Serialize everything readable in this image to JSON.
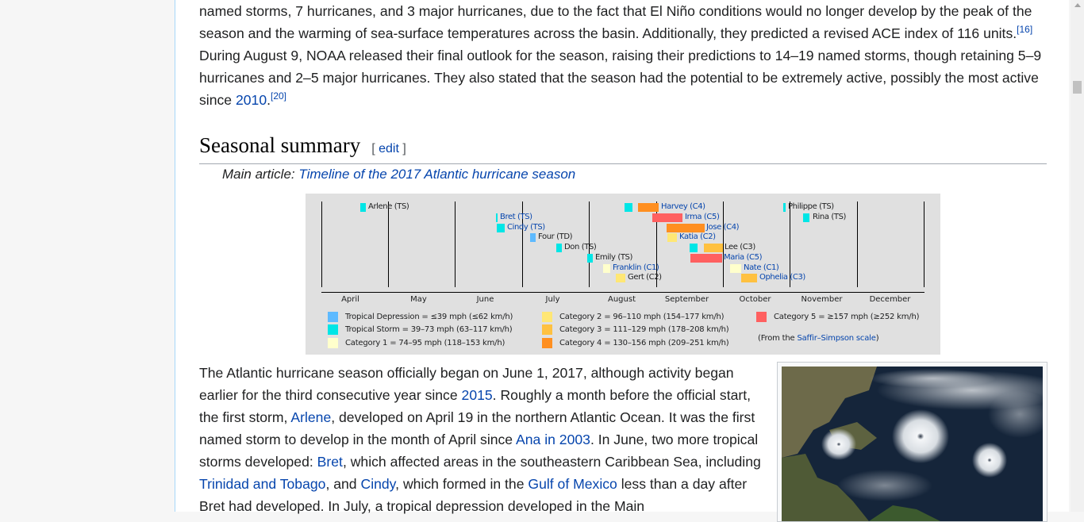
{
  "intro": {
    "line1": "named storms, 7 hurricanes, and 3 major hurricanes, due to the fact that El Niño conditions would no longer develop by the peak of the",
    "line2": "season and the warming of sea-surface temperatures across the basin. Additionally, they predicted a revised ACE index of 116 units.",
    "ref1": "[16]",
    "line3": "During August 9, NOAA released their final outlook for the season, raising their predictions to 14–19 named storms, though retaining 5–9",
    "line4": "hurricanes and 2–5 major hurricanes. They also stated that the season had the potential to be extremely active, possibly the most active",
    "line5_prefix": "since ",
    "link_2010": "2010",
    "line5_suffix": ".",
    "ref2": "[20]"
  },
  "section": {
    "title": "Seasonal summary",
    "edit_open": "[ ",
    "edit_label": "edit",
    "edit_close": " ]",
    "hatnote_prefix": "Main article: ",
    "hatnote_link": "Timeline of the 2017 Atlantic hurricane season"
  },
  "timeline": {
    "months": [
      "April",
      "May",
      "June",
      "July",
      "August",
      "September",
      "October",
      "November",
      "December"
    ],
    "events": [
      {
        "label": "Arlene (TS)",
        "color": "#00e6e6",
        "linked": false
      },
      {
        "label": "Bret (TS)",
        "color": "#00e6e6",
        "linked": true
      },
      {
        "label": "Cindy (TS)",
        "color": "#00e6e6",
        "linked": true
      },
      {
        "label": "Four (TD)",
        "color": "#5ebaff",
        "linked": false
      },
      {
        "label": "Don (TS)",
        "color": "#00e6e6",
        "linked": false
      },
      {
        "label": "Emily (TS)",
        "color": "#00e6e6",
        "linked": false
      },
      {
        "label": "Franklin (C1)",
        "color": "#ffffcc",
        "linked": true
      },
      {
        "label": "Gert (C2)",
        "color": "#ffe775",
        "linked": false
      },
      {
        "label": "Harvey (C4)",
        "color": "#ff8f20",
        "linked": true
      },
      {
        "label": "Irma (C5)",
        "color": "#ff6060",
        "linked": true
      },
      {
        "label": "Jose (C4)",
        "color": "#ff8f20",
        "linked": true
      },
      {
        "label": "Katia (C2)",
        "color": "#ffe775",
        "linked": true
      },
      {
        "label": "Lee (C3)",
        "color": "#ffc140",
        "linked": false
      },
      {
        "label": "Maria (C5)",
        "color": "#ff6060",
        "linked": true
      },
      {
        "label": "Nate (C1)",
        "color": "#ffffcc",
        "linked": true
      },
      {
        "label": "Ophelia (C3)",
        "color": "#ffc140",
        "linked": true
      },
      {
        "label": "Philippe (TS)",
        "color": "#00e6e6",
        "linked": false
      },
      {
        "label": "Rina (TS)",
        "color": "#00e6e6",
        "linked": false
      }
    ],
    "legend": [
      {
        "label": "Tropical Depression = ≤39 mph (≤62 km/h)",
        "color": "#5ebaff"
      },
      {
        "label": "Tropical Storm = 39–73 mph (63–117 km/h)",
        "color": "#00e6e6"
      },
      {
        "label": "Category 1 = 74–95 mph (118–153 km/h)",
        "color": "#ffffcc"
      },
      {
        "label": "Category 2 = 96–110 mph (154–177 km/h)",
        "color": "#ffe775"
      },
      {
        "label": "Category 3 = 111–129 mph (178–208 km/h)",
        "color": "#ffc140"
      },
      {
        "label": "Category 4 = 130–156 mph (209–251 km/h)",
        "color": "#ff8f20"
      },
      {
        "label": "Category 5 = ≥157 mph (≥252 km/h)",
        "color": "#ff6060"
      }
    ],
    "source_prefix": "(From the ",
    "source_link": "Saffir–Simpson scale",
    "source_suffix": ")"
  },
  "summary": {
    "s1": "The Atlantic hurricane season officially began on June 1, 2017, although activity began earlier for the third consecutive year since ",
    "l_2015": "2015",
    "s2": ". Roughly a month before the official start, the first storm, ",
    "l_arlene": "Arlene",
    "s3": ", developed on April 19 in the northern Atlantic Ocean. It was the first named storm to develop in the month of April since ",
    "l_ana": "Ana in 2003",
    "s4": ". In June, two more tropical storms developed: ",
    "l_bret": "Bret",
    "s5": ", which affected areas in the southeastern Caribbean Sea, including ",
    "l_tt": "Trinidad and Tobago",
    "s6": ", and ",
    "l_cindy": "Cindy",
    "s7": ", which formed in the ",
    "l_gom": "Gulf of Mexico",
    "s8": " less than a day after Bret had developed. In July, a tropical depression developed in the Main"
  },
  "colors": {
    "link": "#0645ad",
    "chart_bg": "#e0e0e0"
  }
}
